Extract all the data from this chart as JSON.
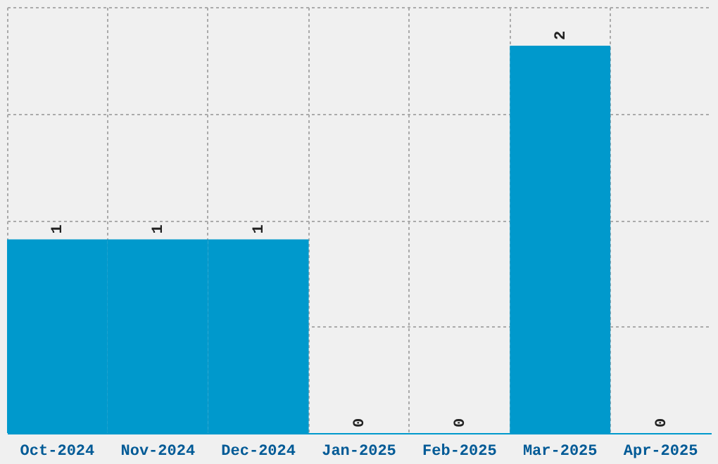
{
  "chart_data": {
    "type": "bar",
    "categories": [
      "Oct-2024",
      "Nov-2024",
      "Dec-2024",
      "Jan-2025",
      "Feb-2025",
      "Mar-2025",
      "Apr-2025"
    ],
    "values": [
      1,
      1,
      1,
      0,
      0,
      2,
      0
    ],
    "color": "#0099cc",
    "ylim": [
      0,
      2.2
    ],
    "yticks": [
      {
        "value": 0,
        "label": null
      },
      {
        "value": 0.55,
        "label": null
      },
      {
        "value": 1.1,
        "label": null
      },
      {
        "value": 1.65,
        "label": null
      },
      {
        "value": 2.2,
        "label": null
      }
    ],
    "grid": true,
    "data_labels": true,
    "tick_labels": "x"
  }
}
